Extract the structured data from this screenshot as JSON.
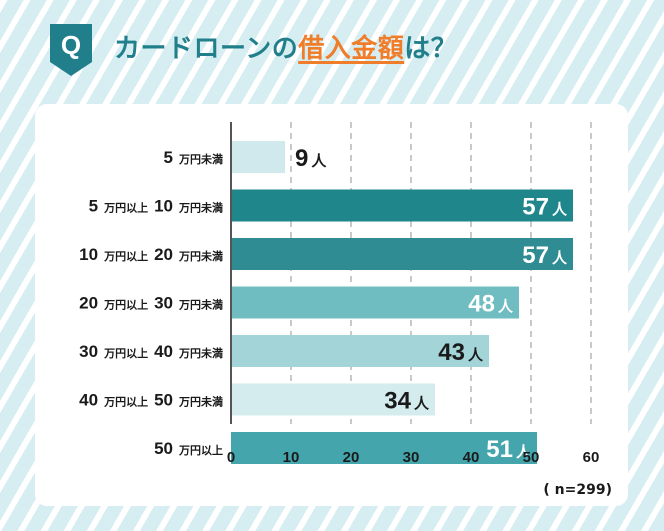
{
  "header": {
    "badge_letter": "Q",
    "title_prefix": "カードローンの",
    "title_highlight": "借入金額",
    "title_suffix": "は？"
  },
  "colors": {
    "teal_dark": "#217f8c",
    "accent_orange": "#ef7d2a"
  },
  "sample_note": "( n=299)",
  "chart_data": {
    "type": "bar",
    "orientation": "horizontal",
    "categories": [
      [
        {
          "n": "5",
          "u": "万円未満"
        }
      ],
      [
        {
          "n": "5",
          "u": "万円以上"
        },
        {
          "n": "10",
          "u": "万円未満"
        }
      ],
      [
        {
          "n": "10",
          "u": "万円以上"
        },
        {
          "n": "20",
          "u": "万円未満"
        }
      ],
      [
        {
          "n": "20",
          "u": "万円以上"
        },
        {
          "n": "30",
          "u": "万円未満"
        }
      ],
      [
        {
          "n": "30",
          "u": "万円以上"
        },
        {
          "n": "40",
          "u": "万円未満"
        }
      ],
      [
        {
          "n": "40",
          "u": "万円以上"
        },
        {
          "n": "50",
          "u": "万円未満"
        }
      ],
      [
        {
          "n": "50",
          "u": "万円以上"
        }
      ]
    ],
    "values": [
      9,
      57,
      57,
      48,
      43,
      34,
      51
    ],
    "value_unit": "人",
    "bar_colors": [
      "#cfe9ec",
      "#1f868b",
      "#2f8c93",
      "#6fbcc1",
      "#a3d4d8",
      "#d4ecee",
      "#44a5ad"
    ],
    "label_colors": [
      "#1a1a1a",
      "#ffffff",
      "#ffffff",
      "#ffffff",
      "#1a1a1a",
      "#1a1a1a",
      "#ffffff"
    ],
    "xlim": [
      0,
      60
    ],
    "xticks": [
      0,
      10,
      20,
      30,
      40,
      50,
      60
    ],
    "grid": "vertical-dashed"
  }
}
